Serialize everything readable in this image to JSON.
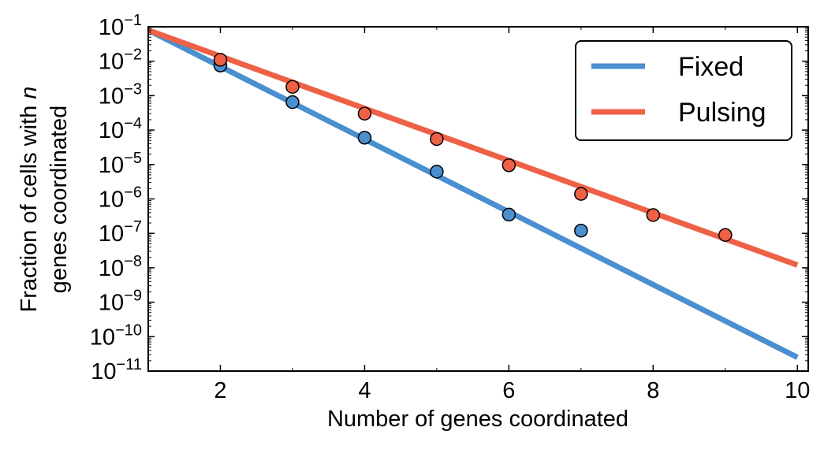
{
  "chart_data": {
    "type": "scatter",
    "title": "",
    "xlabel": "Number of genes coordinated",
    "ylabel_line1": "Fraction of cells with n",
    "ylabel_line1_prefix": "Fraction of cells with ",
    "ylabel_line1_var": "n",
    "ylabel_line2": "genes coordinated",
    "yscale": "log",
    "xlim": [
      1,
      10.15
    ],
    "ylim_exp": [
      -11,
      -1
    ],
    "xticks": [
      2,
      4,
      6,
      8,
      10
    ],
    "yticks_exp": [
      -1,
      -2,
      -3,
      -4,
      -5,
      -6,
      -7,
      -8,
      -9,
      -10,
      -11
    ],
    "ytick_base": "10",
    "legend_position": "top-right",
    "series": [
      {
        "name": "Fixed",
        "color": "#4a8fcf",
        "points": [
          {
            "x": 2,
            "y": 0.0075
          },
          {
            "x": 3,
            "y": 0.00065
          },
          {
            "x": 4,
            "y": 6e-05
          },
          {
            "x": 5,
            "y": 6.2e-06
          },
          {
            "x": 6,
            "y": 3.5e-07
          },
          {
            "x": 7,
            "y": 1.2e-07
          }
        ],
        "fit_line": {
          "x": [
            1,
            10
          ],
          "y": [
            0.08,
            2.5e-11
          ]
        }
      },
      {
        "name": "Pulsing",
        "color": "#ee6146",
        "points": [
          {
            "x": 2,
            "y": 0.011
          },
          {
            "x": 3,
            "y": 0.0018
          },
          {
            "x": 4,
            "y": 0.0003
          },
          {
            "x": 5,
            "y": 5.5e-05
          },
          {
            "x": 6,
            "y": 9.5e-06
          },
          {
            "x": 7,
            "y": 1.4e-06
          },
          {
            "x": 8,
            "y": 3.4e-07
          },
          {
            "x": 9,
            "y": 9e-08
          }
        ],
        "fit_line": {
          "x": [
            1,
            10
          ],
          "y": [
            0.08,
            1.2e-08
          ]
        }
      }
    ]
  }
}
